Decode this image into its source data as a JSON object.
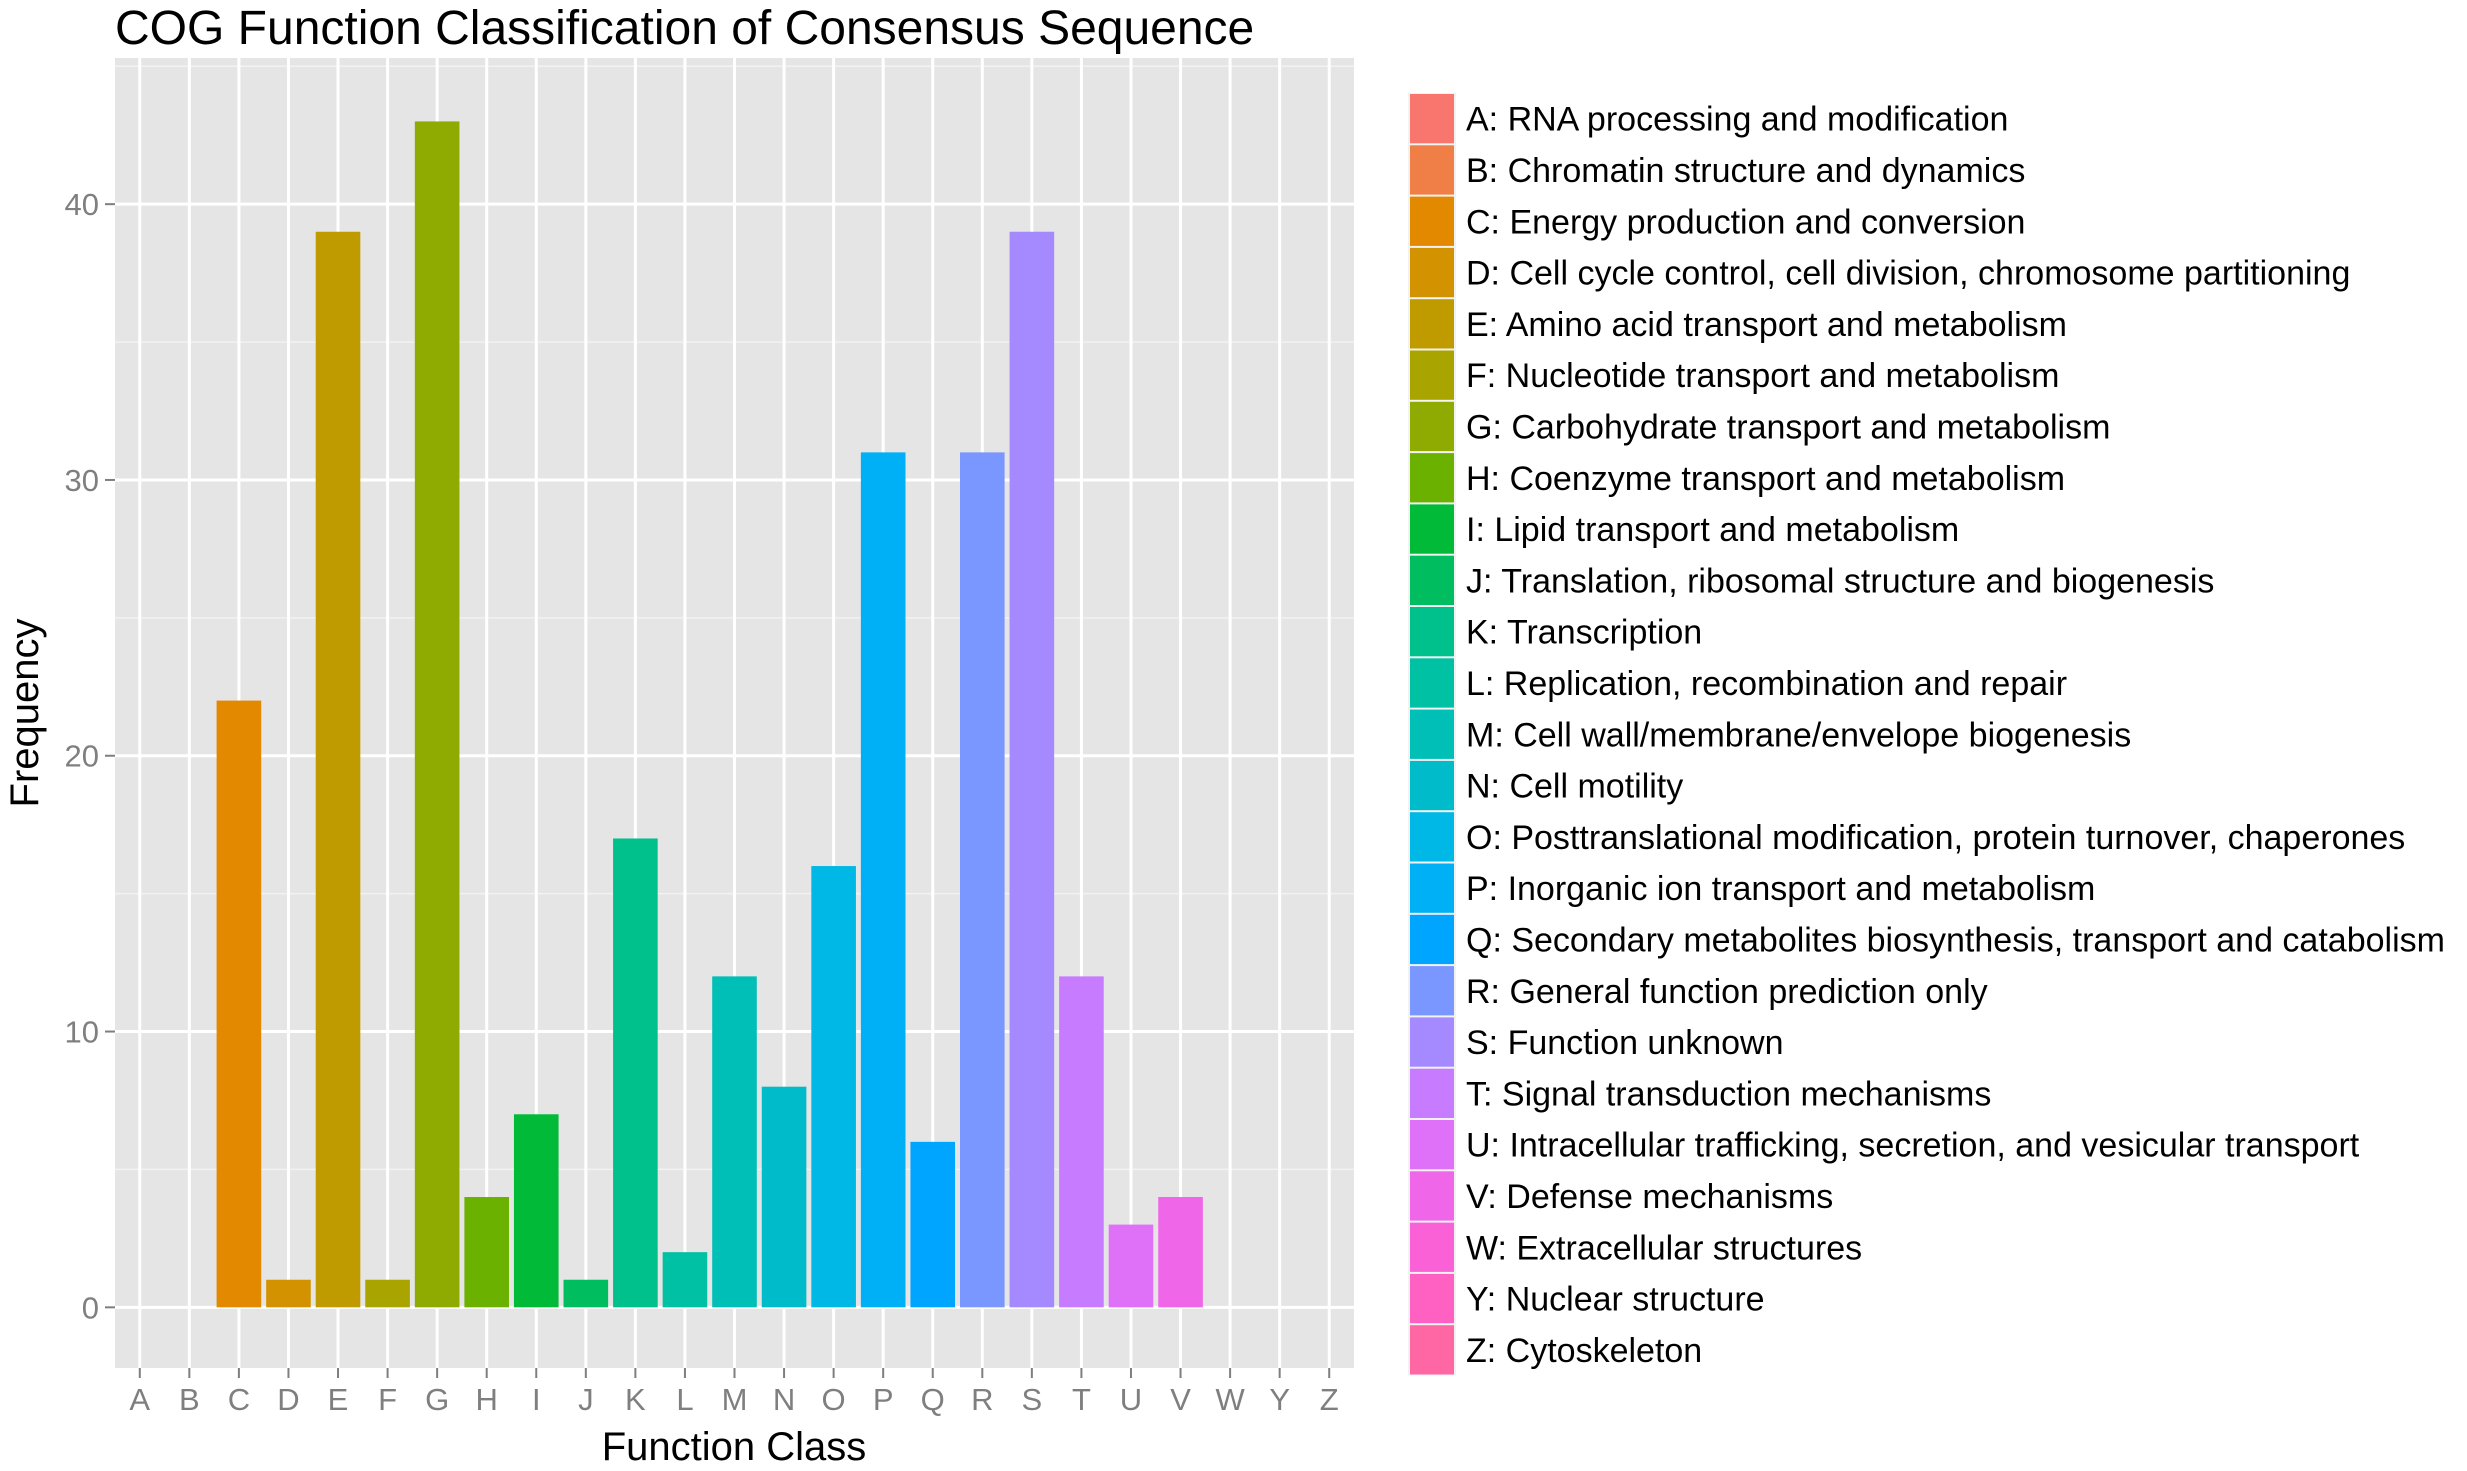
{
  "chart_data": {
    "type": "bar",
    "title": "COG Function Classification of Consensus Sequence",
    "xlabel": "Function Class",
    "ylabel": "Frequency",
    "ylim": [
      -2.2,
      45.3
    ],
    "yticks": [
      0,
      10,
      20,
      30,
      40
    ],
    "grid": true,
    "legend_position": "right",
    "categories": [
      "A",
      "B",
      "C",
      "D",
      "E",
      "F",
      "G",
      "H",
      "I",
      "J",
      "K",
      "L",
      "M",
      "N",
      "O",
      "P",
      "Q",
      "R",
      "S",
      "T",
      "U",
      "V",
      "W",
      "Y",
      "Z"
    ],
    "values": [
      0,
      0,
      22,
      1,
      39,
      1,
      43,
      4,
      7,
      1,
      17,
      2,
      12,
      8,
      16,
      31,
      6,
      31,
      39,
      12,
      3,
      4,
      0,
      0,
      0
    ],
    "colors": [
      "#F8766D",
      "#EF7F46",
      "#E38900",
      "#D39200",
      "#C09B00",
      "#A9A400",
      "#8FAA00",
      "#6BB100",
      "#00BA38",
      "#00BD5F",
      "#00C08B",
      "#00C1A3",
      "#00BFB7",
      "#00BBC9",
      "#00B8E5",
      "#00B0F6",
      "#00A5FF",
      "#7997FF",
      "#A58AFF",
      "#C77CFF",
      "#DF70F8",
      "#F066E9",
      "#FB61D7",
      "#FF61C3",
      "#FF67A4"
    ],
    "legend": [
      "A: RNA processing and modification",
      "B: Chromatin structure and dynamics",
      "C: Energy production and conversion",
      "D: Cell cycle control, cell division, chromosome partitioning",
      "E: Amino acid transport and metabolism",
      "F: Nucleotide transport and metabolism",
      "G: Carbohydrate transport and metabolism",
      "H: Coenzyme transport and metabolism",
      "I: Lipid transport and metabolism",
      "J: Translation, ribosomal structure and biogenesis",
      "K: Transcription",
      "L: Replication, recombination and repair",
      "M: Cell wall/membrane/envelope biogenesis",
      "N: Cell motility",
      "O: Posttranslational modification, protein turnover, chaperones",
      "P: Inorganic ion transport and metabolism",
      "Q: Secondary metabolites biosynthesis, transport and catabolism",
      "R: General function prediction only",
      "S: Function unknown",
      "T: Signal transduction mechanisms",
      "U: Intracellular trafficking, secretion, and vesicular transport",
      "V: Defense mechanisms",
      "W: Extracellular structures",
      "Y: Nuclear structure",
      "Z: Cytoskeleton"
    ]
  }
}
